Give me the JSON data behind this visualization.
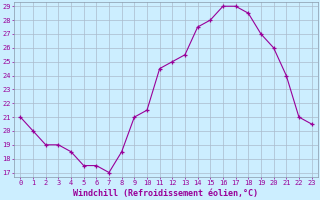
{
  "x": [
    0,
    1,
    2,
    3,
    4,
    5,
    6,
    7,
    8,
    9,
    10,
    11,
    12,
    13,
    14,
    15,
    16,
    17,
    18,
    19,
    20,
    21,
    22,
    23
  ],
  "y": [
    21,
    20,
    19,
    19,
    18.5,
    17.5,
    17.5,
    17,
    18.5,
    21,
    21.5,
    24.5,
    25,
    25.5,
    27.5,
    28,
    29,
    29,
    28.5,
    27,
    26,
    24,
    21,
    20.5
  ],
  "line_color": "#990099",
  "marker_color": "#990099",
  "bg_color": "#cceeff",
  "grid_color": "#aabbcc",
  "spine_color": "#8899aa",
  "xlabel": "Windchill (Refroidissement éolien,°C)",
  "ylim": [
    17,
    29
  ],
  "xlim": [
    -0.5,
    23.5
  ],
  "yticks": [
    17,
    18,
    19,
    20,
    21,
    22,
    23,
    24,
    25,
    26,
    27,
    28,
    29
  ],
  "xticks": [
    0,
    1,
    2,
    3,
    4,
    5,
    6,
    7,
    8,
    9,
    10,
    11,
    12,
    13,
    14,
    15,
    16,
    17,
    18,
    19,
    20,
    21,
    22,
    23
  ],
  "xlabel_color": "#990099",
  "tick_color": "#990099",
  "tick_fontsize": 5,
  "xlabel_fontsize": 6
}
